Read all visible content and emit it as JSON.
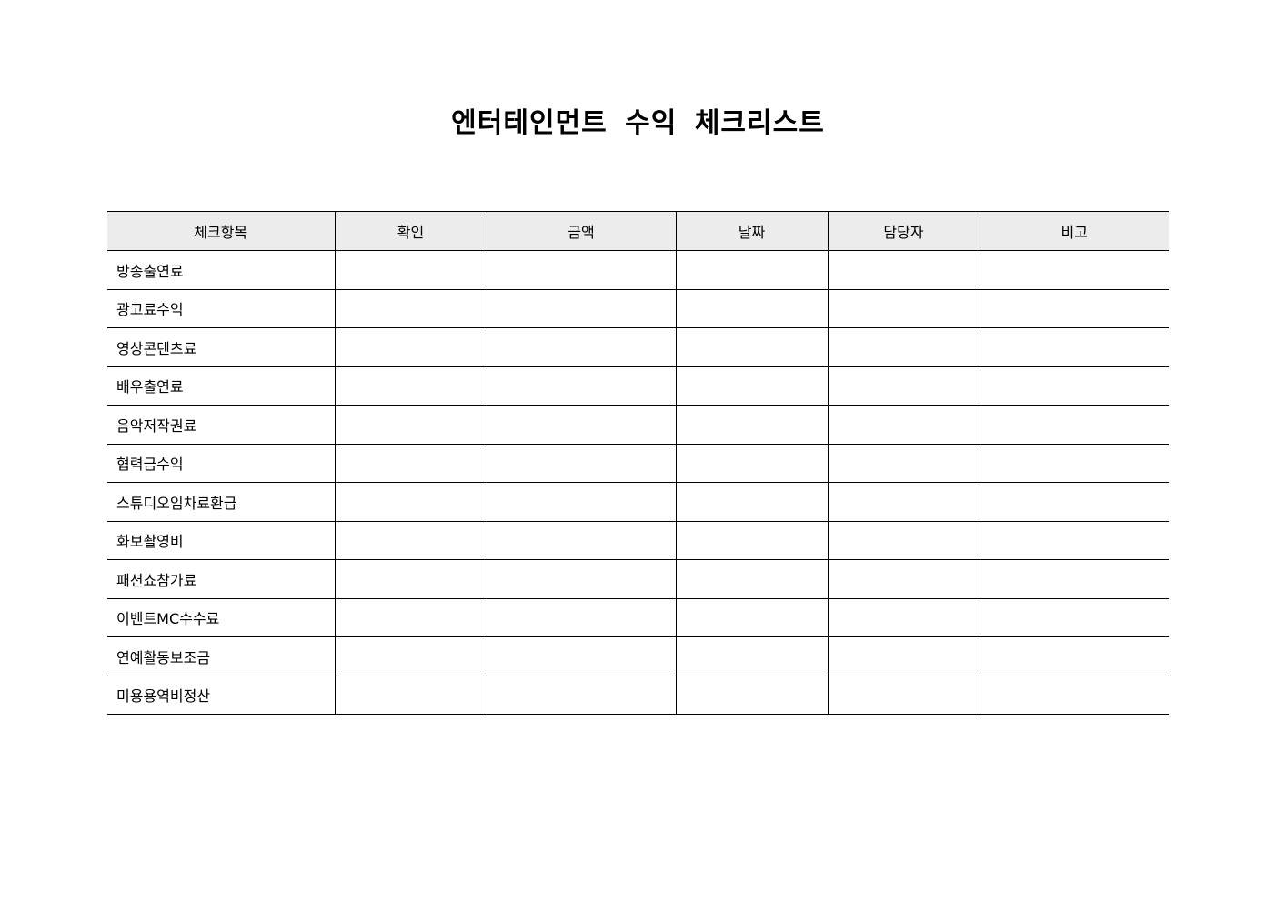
{
  "title": "엔터테인먼트 수익 체크리스트",
  "table": {
    "headers": [
      "체크항목",
      "확인",
      "금액",
      "날짜",
      "담당자",
      "비고"
    ],
    "header_bg": "#ececec",
    "rows": [
      "방송출연료",
      "광고료수익",
      "영상콘텐츠료",
      "배우출연료",
      "음악저작권료",
      "협력금수익",
      "스튜디오임차료환급",
      "화보촬영비",
      "패션쇼참가료",
      "이벤트MC수수료",
      "연예활동보조금",
      "미용용역비정산"
    ]
  }
}
